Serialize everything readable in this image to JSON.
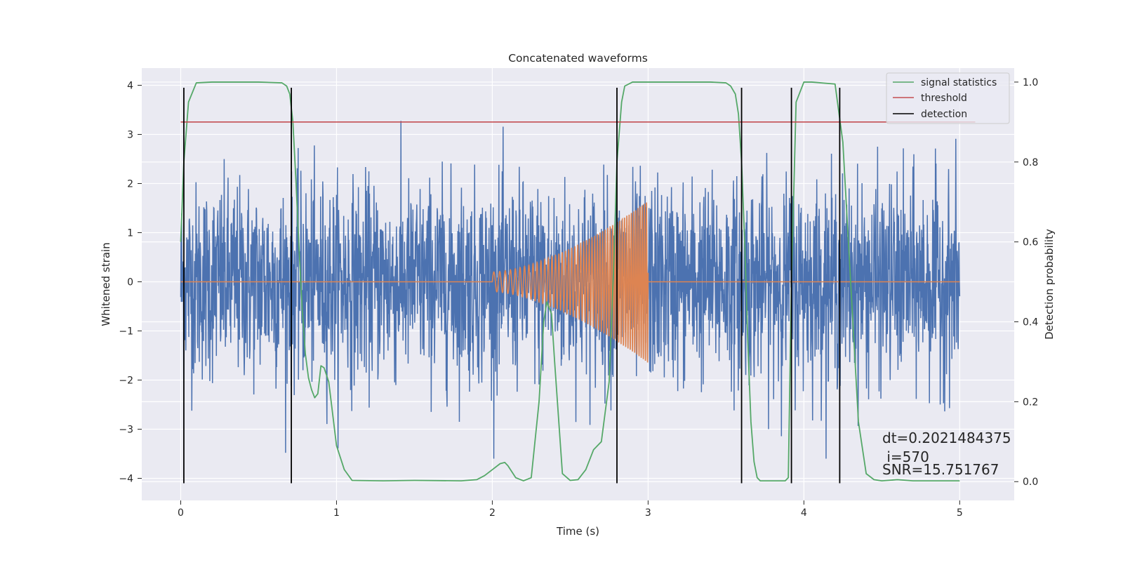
{
  "chart_data": {
    "type": "line",
    "title": "Concatenated waveforms",
    "xlabel": "Time (s)",
    "ylabel": "Whitened strain",
    "ylabel_right": "Detection probability",
    "xlim": [
      -0.25,
      5.35
    ],
    "ylim": [
      -4.45,
      4.35
    ],
    "ylim_right": [
      -0.047,
      1.035
    ],
    "xticks": [
      0,
      1,
      2,
      3,
      4,
      5
    ],
    "yticks": [
      -4,
      -3,
      -2,
      -1,
      0,
      1,
      2,
      3,
      4
    ],
    "yticks_right": [
      0.0,
      0.2,
      0.4,
      0.6,
      0.8,
      1.0
    ],
    "xtick_labels": [
      "0",
      "1",
      "2",
      "3",
      "4",
      "5"
    ],
    "ytick_labels": [
      "−4",
      "−3",
      "−2",
      "−1",
      "0",
      "1",
      "2",
      "3",
      "4"
    ],
    "ytick_labels_right": [
      "0.0",
      "0.2",
      "0.4",
      "0.6",
      "0.8",
      "1.0"
    ],
    "grid": true,
    "legend_position": "top-right",
    "legend": [
      "signal statistics",
      "threshold",
      "detection"
    ],
    "colors": {
      "noise": "#4c72b0",
      "template": "#dd8452",
      "signal_statistics": "#55a868",
      "threshold": "#c44e52",
      "detection": "#000000",
      "plot_bg": "#eaeaf2",
      "grid": "#ffffff"
    },
    "noise": {
      "x_range": [
        0,
        5
      ],
      "typical_amplitude": 1.0,
      "peak_amplitude": 3.6
    },
    "template_chirp": {
      "x_range": [
        2.0,
        3.0
      ],
      "start_amplitude": 0.2,
      "end_amplitude": 1.65,
      "start_frequency_hz": 25,
      "end_frequency_hz": 75
    },
    "threshold": {
      "x": [
        0,
        5.1
      ],
      "y": 0.9
    },
    "detections_x": [
      0.02,
      0.71,
      2.8,
      3.6,
      3.92,
      4.23
    ],
    "detection_line_y": [
      -4.1,
      3.95
    ],
    "signal_statistics": {
      "x": [
        0,
        0.02,
        0.05,
        0.1,
        0.2,
        0.5,
        0.65,
        0.68,
        0.7,
        0.72,
        0.74,
        0.76,
        0.78,
        0.8,
        0.82,
        0.84,
        0.86,
        0.88,
        0.9,
        0.92,
        0.95,
        1.0,
        1.05,
        1.1,
        1.3,
        1.5,
        1.8,
        1.9,
        1.95,
        2.0,
        2.05,
        2.08,
        2.1,
        2.15,
        2.2,
        2.25,
        2.3,
        2.33,
        2.35,
        2.38,
        2.4,
        2.45,
        2.5,
        2.55,
        2.6,
        2.65,
        2.7,
        2.75,
        2.78,
        2.8,
        2.83,
        2.85,
        2.9,
        3.0,
        3.2,
        3.4,
        3.5,
        3.53,
        3.56,
        3.58,
        3.6,
        3.62,
        3.64,
        3.66,
        3.68,
        3.7,
        3.72,
        3.74,
        3.8,
        3.88,
        3.9,
        3.92,
        3.95,
        4.0,
        4.05,
        4.2,
        4.25,
        4.3,
        4.35,
        4.4,
        4.45,
        4.5,
        4.6,
        4.7,
        5.0
      ],
      "y": [
        0.6,
        0.8,
        0.95,
        0.998,
        1.0,
        1.0,
        0.998,
        0.99,
        0.97,
        0.9,
        0.75,
        0.58,
        0.43,
        0.32,
        0.26,
        0.23,
        0.21,
        0.22,
        0.29,
        0.285,
        0.25,
        0.09,
        0.03,
        0.003,
        0.002,
        0.003,
        0.002,
        0.005,
        0.015,
        0.03,
        0.045,
        0.048,
        0.04,
        0.01,
        0.002,
        0.01,
        0.2,
        0.4,
        0.45,
        0.42,
        0.3,
        0.02,
        0.003,
        0.005,
        0.03,
        0.08,
        0.1,
        0.25,
        0.55,
        0.8,
        0.95,
        0.99,
        1.0,
        1.0,
        1.0,
        1.0,
        0.998,
        0.99,
        0.97,
        0.92,
        0.8,
        0.6,
        0.35,
        0.15,
        0.05,
        0.01,
        0.002,
        0.002,
        0.002,
        0.002,
        0.01,
        0.5,
        0.95,
        1.0,
        1.0,
        0.995,
        0.85,
        0.5,
        0.15,
        0.02,
        0.005,
        0.002,
        0.005,
        0.002,
        0.002
      ]
    },
    "annotations": [
      "dt=0.2021484375",
      " i=570",
      "SNR=15.751767"
    ]
  }
}
